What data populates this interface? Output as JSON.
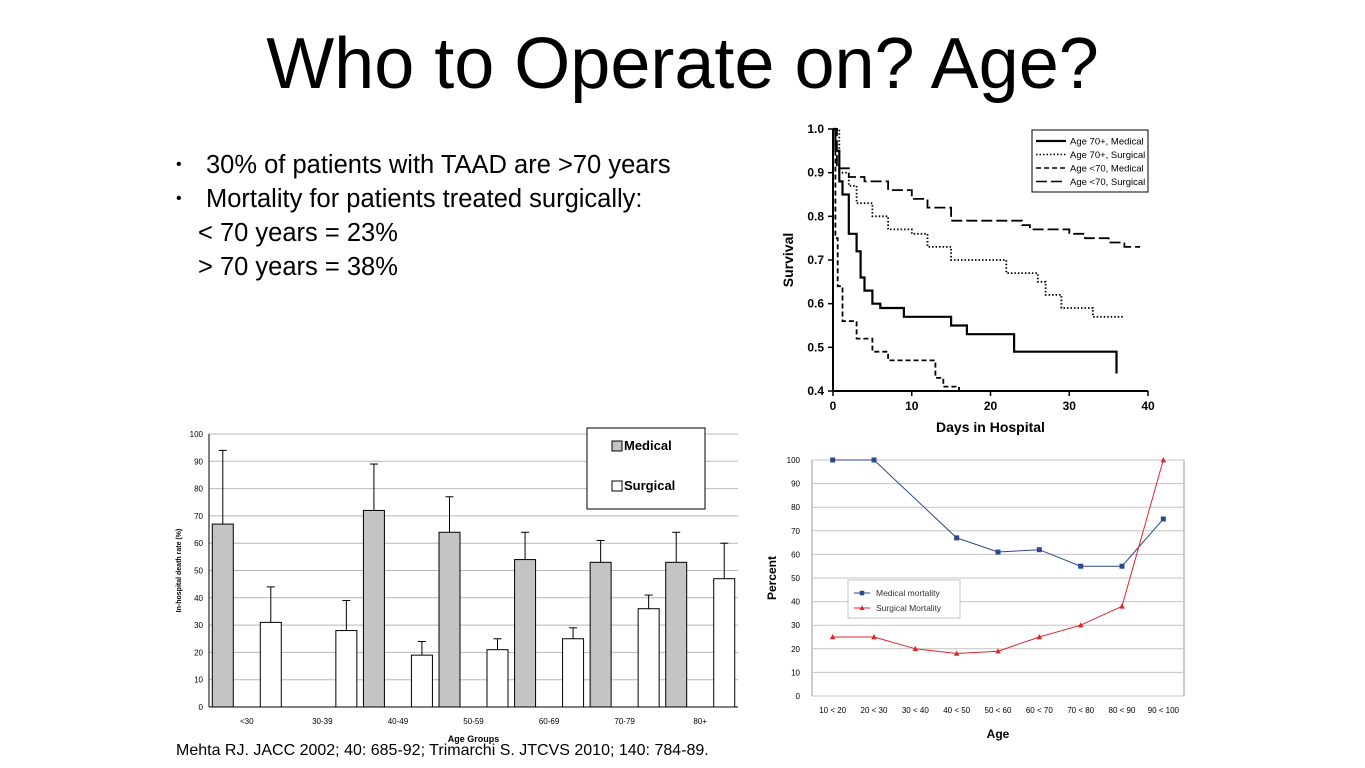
{
  "title": "Who to Operate on? Age?",
  "bullets": {
    "b1": "30% of patients with TAAD are >70 years",
    "b2": "Mortality for patients treated surgically:",
    "b3": "< 70 years = 23%",
    "b4": "> 70 years = 38%"
  },
  "citation": "Mehta RJ. JACC 2002; 40: 685-92;  Trimarchi S. JTCVS 2010; 140: 784-89.",
  "chart_data": [
    {
      "type": "line",
      "id": "survival",
      "ylabel": "Survival",
      "xlabel": "Days in Hospital",
      "xlim": [
        0,
        40
      ],
      "ylim": [
        0.4,
        1.0
      ],
      "xticks": [
        "0",
        "10",
        "20",
        "30",
        "40"
      ],
      "yticks": [
        "0.4",
        "0.5",
        "0.6",
        "0.7",
        "0.8",
        "0.9",
        "1.0"
      ],
      "legend_position": "top-right",
      "series": [
        {
          "name": "Age 70+, Medical",
          "style": "solid",
          "x": [
            0,
            0.3,
            0.8,
            1.2,
            2,
            3,
            3.5,
            4,
            5,
            6,
            9,
            14,
            15,
            17,
            22,
            23,
            26,
            36
          ],
          "y": [
            1.0,
            0.95,
            0.88,
            0.85,
            0.76,
            0.72,
            0.66,
            0.63,
            0.6,
            0.59,
            0.57,
            0.57,
            0.55,
            0.53,
            0.53,
            0.49,
            0.49,
            0.44
          ]
        },
        {
          "name": "Age 70+, Surgical",
          "style": "dotted",
          "x": [
            0,
            0.8,
            2,
            3,
            5,
            7,
            10,
            12,
            15,
            21,
            22,
            26,
            27,
            29,
            33,
            37
          ],
          "y": [
            1.0,
            0.9,
            0.87,
            0.83,
            0.8,
            0.77,
            0.76,
            0.73,
            0.7,
            0.7,
            0.67,
            0.65,
            0.62,
            0.59,
            0.57,
            0.57
          ]
        },
        {
          "name": "Age <70, Medical",
          "style": "dashed",
          "x": [
            0,
            0.3,
            0.6,
            1.2,
            3,
            5,
            7,
            12,
            13,
            14,
            16
          ],
          "y": [
            1.0,
            0.75,
            0.64,
            0.56,
            0.52,
            0.49,
            0.47,
            0.47,
            0.43,
            0.41,
            0.4
          ]
        },
        {
          "name": "Age <70, Surgical",
          "style": "longdash",
          "x": [
            0,
            0.5,
            2,
            4,
            7,
            10,
            12,
            15,
            19,
            24,
            25,
            30,
            32,
            35,
            37,
            39
          ],
          "y": [
            1.0,
            0.91,
            0.89,
            0.88,
            0.86,
            0.84,
            0.82,
            0.79,
            0.79,
            0.78,
            0.77,
            0.76,
            0.75,
            0.74,
            0.73,
            0.73
          ]
        }
      ]
    },
    {
      "type": "bar",
      "id": "death_rate",
      "ylabel": "In-hospital death rate (%)",
      "xlabel": "Age Groups",
      "ylim": [
        0,
        100
      ],
      "yticks": [
        "0",
        "10",
        "20",
        "30",
        "40",
        "50",
        "60",
        "70",
        "80",
        "90",
        "100"
      ],
      "categories": [
        "<30",
        "30-39",
        "40-49",
        "50-59",
        "60-69",
        "70-79",
        "80+"
      ],
      "legend_position": "top-right",
      "series": [
        {
          "name": "Medical",
          "values": [
            67,
            null,
            72,
            64,
            54,
            53,
            53
          ],
          "error_upper": [
            94,
            null,
            89,
            77,
            64,
            61,
            64
          ]
        },
        {
          "name": "Surgical",
          "values": [
            31,
            28,
            19,
            21,
            25,
            36,
            47
          ],
          "error_upper": [
            44,
            39,
            24,
            25,
            29,
            41,
            60
          ]
        }
      ]
    },
    {
      "type": "line",
      "id": "percent_by_age",
      "ylabel": "Percent",
      "xlabel": "Age",
      "ylim": [
        0,
        100
      ],
      "yticks": [
        "0",
        "10",
        "20",
        "30",
        "40",
        "50",
        "60",
        "70",
        "80",
        "90",
        "100"
      ],
      "categories": [
        "10 < 20",
        "20 < 30",
        "30 < 40",
        "40 < 50",
        "50 < 60",
        "60 < 70",
        "70 < 80",
        "80 < 90",
        "90 < 100"
      ],
      "legend_position": "bottom-left",
      "series": [
        {
          "name": "Medical mortality",
          "color": "#2b4a8b",
          "marker": "square",
          "values": [
            100,
            100,
            null,
            67,
            61,
            62,
            55,
            55,
            75
          ]
        },
        {
          "name": "Surgical Mortality",
          "color": "#e0262b",
          "marker": "triangle",
          "values": [
            25,
            25,
            20,
            18,
            19,
            25,
            30,
            38,
            100
          ]
        }
      ]
    }
  ]
}
